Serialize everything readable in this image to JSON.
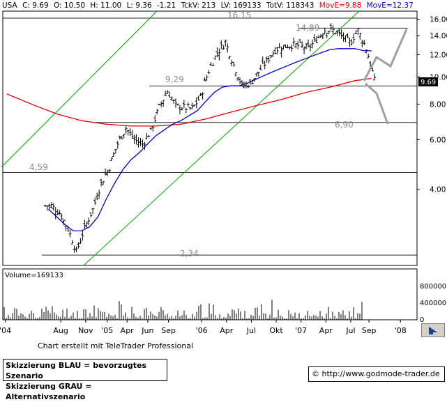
{
  "header": {
    "symbol": "USA",
    "close": "C: 9.69",
    "open": "O: 10.50",
    "high": "H: 11.00",
    "low": "L: 9.36",
    "change": "-1.21",
    "tickvolume": "TckV: 213",
    "lastvolume": "LV: 169133",
    "totalvolume": "TotV: 118343",
    "move_red": "MovE=9.88",
    "move_blue": "MovE=12.37"
  },
  "colors": {
    "price": "#000000",
    "ma_red": "#e00000",
    "ma_blue": "#0000c8",
    "channel": "#00a000",
    "scenario_grey": "#a0a0a0",
    "level_line": "#000000",
    "label_grey": "#8c8c8c",
    "last_price_box": "#000000"
  },
  "annotations": {
    "level_1615": "16,15",
    "level_1489": "14,89",
    "level_929": "9,29",
    "level_690": "6,90",
    "level_459": "4,59",
    "level_234": "2,34",
    "last_price": "9.69"
  },
  "volume": {
    "label": "Volume=169133",
    "ticks": [
      "800000",
      "400000",
      "0"
    ]
  },
  "footer": {
    "credit": "Chart erstellt mit TeleTrader Professional",
    "legend_blue": "Skizzierung BLAU = bevorzugtes Szenario",
    "legend_grey": "Skizzierung GRAU = Alternativszenario",
    "copyright_symbol": "©",
    "url": "http://www.godmode-trader.de"
  },
  "chart_data": {
    "type": "line",
    "title": "",
    "xlabel": "",
    "ylabel": "",
    "y_scale": "log",
    "ylim": [
      2.15,
      17.1
    ],
    "y_ticks": [
      4.0,
      6.0,
      8.0,
      10.0,
      12.0,
      14.0,
      16.0
    ],
    "y_tick_labels": [
      "4.00",
      "6.00",
      "8.00",
      "10.00",
      "12.00",
      "14.00",
      "16.00"
    ],
    "x_tick_labels": [
      "'04",
      "Aug",
      "Nov",
      "'05",
      "Apr",
      "Jun",
      "Sep",
      "'06",
      "Apr",
      "Jul",
      "Okt",
      "'07",
      "Apr",
      "Jul",
      "Sep",
      "'08"
    ],
    "grid": false,
    "horizontal_levels": [
      16.15,
      14.89,
      9.29,
      6.9,
      4.59,
      2.34
    ],
    "series": [
      {
        "name": "",
        "style": "ohlc",
        "x": [
          "2004-06",
          "2004-07",
          "2004-08",
          "2004-09",
          "2004-10",
          "2004-11",
          "2004-12",
          "2005-01",
          "2005-02",
          "2005-03",
          "2005-04",
          "2005-05",
          "2005-06",
          "2005-07",
          "2005-08",
          "2005-09",
          "2005-10",
          "2005-11",
          "2005-12",
          "2006-01",
          "2006-02",
          "2006-03",
          "2006-04",
          "2006-05",
          "2006-06",
          "2006-07",
          "2006-08",
          "2006-09",
          "2006-10",
          "2006-11",
          "2006-12",
          "2007-01",
          "2007-02",
          "2007-03",
          "2007-04",
          "2007-05",
          "2007-06",
          "2007-07",
          "2007-08",
          "2007-09"
        ],
        "values": [
          3.5,
          3.3,
          2.9,
          2.4,
          2.9,
          3.4,
          4.2,
          4.8,
          5.8,
          6.6,
          6.0,
          5.8,
          6.4,
          7.8,
          8.9,
          7.9,
          7.8,
          7.7,
          8.5,
          10.5,
          12.2,
          13.3,
          11.0,
          9.3,
          9.5,
          10.4,
          11.4,
          12.5,
          12.8,
          13.0,
          12.9,
          12.6,
          13.6,
          14.7,
          14.6,
          14.0,
          13.2,
          14.6,
          12.6,
          9.69
        ]
      },
      {
        "name": "",
        "style": "line",
        "color": "#0000c8",
        "x": [
          "2004-06",
          "2004-07",
          "2004-08",
          "2004-09",
          "2004-10",
          "2004-11",
          "2004-12",
          "2005-01",
          "2005-02",
          "2005-03",
          "2005-04",
          "2005-05",
          "2005-06",
          "2005-07",
          "2005-08",
          "2005-09",
          "2005-10",
          "2005-11",
          "2005-12",
          "2006-01",
          "2006-02",
          "2006-03",
          "2006-04",
          "2006-05",
          "2006-06",
          "2006-07",
          "2006-08",
          "2006-09",
          "2006-10",
          "2006-11",
          "2006-12",
          "2007-01",
          "2007-02",
          "2007-03",
          "2007-04",
          "2007-05",
          "2007-06",
          "2007-07",
          "2007-08",
          "2007-09"
        ],
        "values": [
          3.4,
          3.2,
          3.0,
          2.85,
          2.85,
          2.95,
          3.2,
          3.7,
          4.2,
          4.7,
          5.1,
          5.4,
          5.8,
          6.2,
          6.5,
          6.8,
          7.0,
          7.3,
          7.6,
          8.2,
          8.8,
          9.2,
          9.3,
          9.3,
          9.5,
          9.8,
          10.1,
          10.4,
          10.7,
          11.0,
          11.3,
          11.6,
          11.9,
          12.2,
          12.5,
          12.6,
          12.6,
          12.6,
          12.4,
          12.37
        ]
      },
      {
        "name": "",
        "style": "line",
        "color": "#e00000",
        "x": [
          "2004-01",
          "2004-04",
          "2004-07",
          "2004-10",
          "2005-01",
          "2005-04",
          "2005-07",
          "2005-10",
          "2006-01",
          "2006-04",
          "2006-07",
          "2006-10",
          "2007-01",
          "2007-04",
          "2007-07",
          "2007-09"
        ],
        "values": [
          8.7,
          8.0,
          7.4,
          7.0,
          6.8,
          6.7,
          6.7,
          6.8,
          7.1,
          7.5,
          7.9,
          8.3,
          8.8,
          9.2,
          9.7,
          9.88
        ]
      }
    ]
  }
}
